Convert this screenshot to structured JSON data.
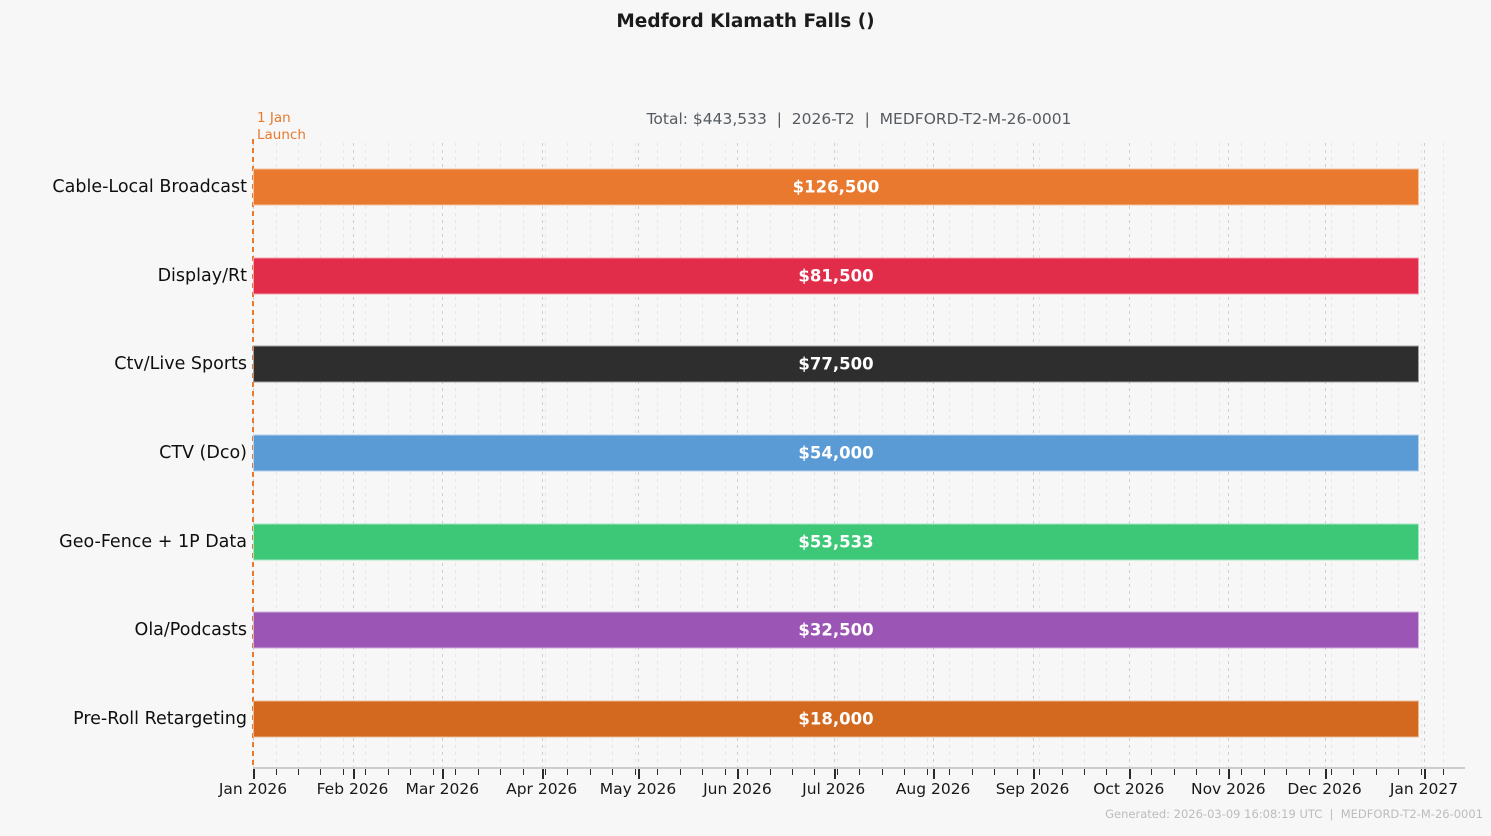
{
  "chart_data": {
    "type": "bar",
    "orientation": "horizontal",
    "title": "Medford Klamath Falls ()",
    "subtitle": "Total: $443,533  |  2026-T2  |  MEDFORD-T2-M-26-0001",
    "categories": [
      "Cable-Local Broadcast",
      "Display/Rt",
      "Ctv/Live Sports",
      "CTV (Dco)",
      "Geo-Fence + 1P Data",
      "Ola/Podcasts",
      "Pre-Roll Retargeting"
    ],
    "values": [
      126500,
      81500,
      77500,
      54000,
      53533,
      32500,
      18000
    ],
    "rows": [
      {
        "label": "Cable-Local Broadcast",
        "value": 126500,
        "value_label": "$126,500",
        "color": "#e8792e",
        "start": "Jan 2026",
        "end": "Jan 2027"
      },
      {
        "label": "Display/Rt",
        "value": 81500,
        "value_label": "$81,500",
        "color": "#e22d4a",
        "start": "Jan 2026",
        "end": "Jan 2027"
      },
      {
        "label": "Ctv/Live Sports",
        "value": 77500,
        "value_label": "$77,500",
        "color": "#2e2e2e",
        "start": "Jan 2026",
        "end": "Jan 2027"
      },
      {
        "label": "CTV (Dco)",
        "value": 54000,
        "value_label": "$54,000",
        "color": "#5b9bd5",
        "start": "Jan 2026",
        "end": "Jan 2027"
      },
      {
        "label": "Geo-Fence + 1P Data",
        "value": 53533,
        "value_label": "$53,533",
        "color": "#3dc878",
        "start": "Jan 2026",
        "end": "Jan 2027"
      },
      {
        "label": "Ola/Podcasts",
        "value": 32500,
        "value_label": "$32,500",
        "color": "#9b55b5",
        "start": "Jan 2026",
        "end": "Jan 2027"
      },
      {
        "label": "Pre-Roll Retargeting",
        "value": 18000,
        "value_label": "$18,000",
        "color": "#d2691e",
        "start": "Jan 2026",
        "end": "Jan 2027"
      }
    ],
    "x_axis": {
      "ticks": [
        "Jan 2026",
        "Feb 2026",
        "Mar 2026",
        "Apr 2026",
        "May 2026",
        "Jun 2026",
        "Jul 2026",
        "Aug 2026",
        "Sep 2026",
        "Oct 2026",
        "Nov 2026",
        "Dec 2026",
        "Jan 2027"
      ],
      "range": [
        "Jan 2026",
        "Jan 2027"
      ],
      "grid": "vertical dashed, weekly minor + monthly major"
    },
    "annotation": {
      "line1": "1 Jan",
      "line2": "Launch",
      "color": "#e8792e",
      "position": "1 Jan 2026"
    },
    "legend": "none",
    "footer": "Generated: 2026-03-09 16:08:19 UTC  |  MEDFORD-T2-M-26-0001"
  }
}
